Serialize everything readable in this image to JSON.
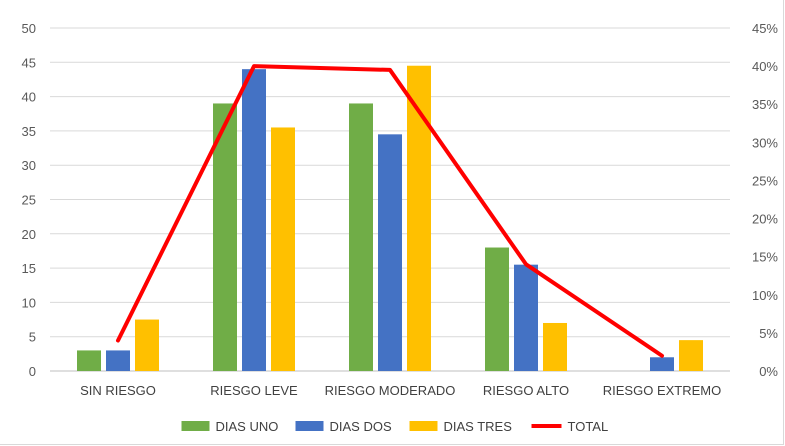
{
  "chart_data": {
    "type": "bar",
    "categories": [
      "SIN RIESGO",
      "RIESGO LEVE",
      "RIESGO MODERADO",
      "RIESGO ALTO",
      "RIESGO EXTREMO"
    ],
    "series": [
      {
        "name": "DIAS UNO",
        "type": "bar",
        "axis": "left",
        "color": "#70ad47",
        "values": [
          3,
          39,
          39,
          18,
          0
        ]
      },
      {
        "name": "DIAS DOS",
        "type": "bar",
        "axis": "left",
        "color": "#4472c4",
        "values": [
          3,
          44,
          34.5,
          15.5,
          2
        ]
      },
      {
        "name": "DIAS TRES",
        "type": "bar",
        "axis": "left",
        "color": "#ffc000",
        "values": [
          7.5,
          35.5,
          44.5,
          7,
          4.5
        ]
      },
      {
        "name": "TOTAL",
        "type": "line",
        "axis": "right",
        "color": "#ff0000",
        "values": [
          4,
          40,
          39.5,
          14,
          2
        ]
      }
    ],
    "y_left": {
      "min": 0,
      "max": 50,
      "ticks": [
        "0",
        "5",
        "10",
        "15",
        "20",
        "25",
        "30",
        "35",
        "40",
        "45",
        "50"
      ]
    },
    "y_right": {
      "min": 0,
      "max": 45,
      "ticks": [
        "0%",
        "5%",
        "10%",
        "15%",
        "20%",
        "25%",
        "30%",
        "35%",
        "40%",
        "45%"
      ]
    },
    "grid": true,
    "legend_position": "bottom"
  }
}
